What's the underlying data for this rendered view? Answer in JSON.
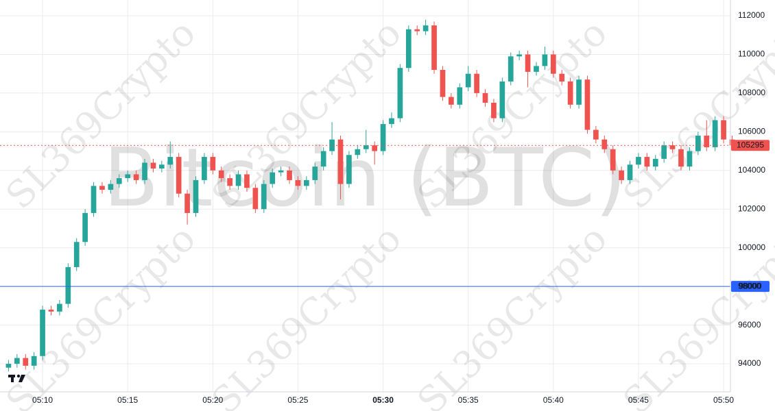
{
  "chart_data": {
    "type": "candlestick",
    "title": "Bitcoin (BTC)",
    "watermark": "SL369Crypto",
    "x": [
      8,
      8.5,
      9,
      9.5,
      10,
      10.5,
      11,
      11.5,
      12,
      12.5,
      13,
      13.5,
      14,
      14.5,
      15,
      15.5,
      16,
      16.5,
      17,
      17.5,
      18,
      18.5,
      19,
      19.5,
      20,
      20.5,
      21,
      21.5,
      22,
      22.5,
      23,
      23.5,
      24,
      24.5,
      25,
      25.5,
      26,
      26.5,
      27,
      27.5,
      28,
      28.5,
      29,
      29.5,
      30,
      30.5,
      31,
      31.5,
      32,
      32.5,
      33,
      33.5,
      34,
      34.5,
      35,
      35.5,
      36,
      36.5,
      37,
      37.5,
      38,
      38.5,
      39,
      39.5,
      40,
      40.5,
      41,
      41.5,
      42,
      42.5,
      43,
      43.5,
      44,
      44.5,
      45,
      45.5,
      46,
      46.5,
      47,
      47.5,
      48,
      48.5,
      49,
      49.5,
      50,
      50.5
    ],
    "open": [
      93800,
      94000,
      94300,
      93900,
      94400,
      96800,
      96700,
      97100,
      99000,
      100300,
      101800,
      103200,
      103000,
      103300,
      103600,
      103800,
      103500,
      104400,
      104100,
      104300,
      104700,
      102800,
      101800,
      103500,
      104700,
      104000,
      103600,
      103200,
      103800,
      103100,
      102000,
      103300,
      103900,
      104000,
      103500,
      103200,
      103500,
      104200,
      105000,
      105600,
      103300,
      104800,
      105100,
      105300,
      105000,
      106400,
      106700,
      109300,
      111300,
      111200,
      111500,
      109200,
      107800,
      107400,
      108300,
      109000,
      108000,
      107500,
      106700,
      108600,
      109900,
      110000,
      109100,
      109400,
      110000,
      109000,
      108600,
      107400,
      108700,
      106100,
      105600,
      105100,
      104000,
      103500,
      104300,
      104700,
      104200,
      104600,
      105300,
      105100,
      104200,
      105000,
      105800,
      105200,
      106600,
      105600
    ],
    "high": [
      94200,
      94500,
      94500,
      94600,
      97000,
      97000,
      97300,
      99200,
      100500,
      102000,
      103400,
      103400,
      103500,
      103800,
      104000,
      104000,
      104600,
      104600,
      104500,
      105500,
      104900,
      103000,
      103700,
      104900,
      104900,
      104200,
      103800,
      104000,
      104000,
      103300,
      103500,
      104100,
      104200,
      104200,
      103700,
      103700,
      104400,
      105200,
      106500,
      105800,
      105000,
      105300,
      106100,
      105500,
      106600,
      107000,
      109500,
      111500,
      111500,
      111800,
      111700,
      109400,
      108000,
      108500,
      109400,
      109200,
      108200,
      107700,
      108800,
      110100,
      110200,
      110200,
      109600,
      110400,
      110200,
      109200,
      108800,
      108900,
      108900,
      106300,
      105800,
      105300,
      104200,
      104500,
      104900,
      104900,
      104800,
      105500,
      105500,
      105300,
      105200,
      106000,
      106600,
      106800,
      106800,
      105800
    ],
    "low": [
      93600,
      93800,
      93700,
      93700,
      94200,
      96500,
      96500,
      96900,
      98800,
      100100,
      101600,
      102800,
      102800,
      103100,
      103400,
      103300,
      103300,
      103900,
      103900,
      104100,
      102600,
      101200,
      101600,
      103300,
      103800,
      103400,
      103000,
      103000,
      102900,
      101800,
      101800,
      103100,
      103700,
      103300,
      103000,
      103000,
      103300,
      104000,
      104800,
      102500,
      103100,
      104600,
      104900,
      104300,
      104800,
      106200,
      106500,
      109100,
      111000,
      111000,
      109000,
      107600,
      107200,
      107200,
      108100,
      107800,
      107300,
      106500,
      106500,
      108400,
      109700,
      108300,
      108900,
      109200,
      108800,
      108400,
      107200,
      107200,
      105900,
      105400,
      104900,
      103800,
      103300,
      103300,
      104100,
      104000,
      104000,
      104400,
      104900,
      104000,
      104000,
      104800,
      105000,
      105000,
      105400,
      105100
    ],
    "close": [
      94000,
      94300,
      93900,
      94400,
      96800,
      96700,
      97100,
      99000,
      100300,
      101800,
      103200,
      103000,
      103300,
      103600,
      103800,
      103500,
      104400,
      104100,
      104300,
      104700,
      102800,
      101800,
      103500,
      104700,
      104000,
      103600,
      103200,
      103800,
      103100,
      102000,
      103300,
      103900,
      104000,
      103500,
      103200,
      103500,
      104200,
      105000,
      105600,
      103300,
      104800,
      105100,
      105300,
      105000,
      106400,
      106700,
      109300,
      111300,
      111200,
      111500,
      109200,
      107800,
      107400,
      108300,
      109000,
      108000,
      107500,
      106700,
      108600,
      109900,
      110000,
      109100,
      109400,
      110000,
      109000,
      108600,
      107400,
      108700,
      106100,
      105600,
      105100,
      104000,
      103500,
      104300,
      104700,
      104200,
      104600,
      105300,
      105100,
      104200,
      105000,
      105800,
      105200,
      106600,
      105600,
      105295
    ],
    "up_color": "#26a69a",
    "down_color": "#ef5350",
    "xlim": [
      7.5,
      50.4
    ],
    "ylim": [
      92550,
      112815
    ],
    "xticks": [
      {
        "value": 10,
        "label": "05:10"
      },
      {
        "value": 15,
        "label": "05:15"
      },
      {
        "value": 20,
        "label": "05:20"
      },
      {
        "value": 25,
        "label": "05:25"
      },
      {
        "value": 30,
        "label": "05:30"
      },
      {
        "value": 35,
        "label": "05:35"
      },
      {
        "value": 40,
        "label": "05:40"
      },
      {
        "value": 45,
        "label": "05:45"
      },
      {
        "value": 50,
        "label": "05:50"
      }
    ],
    "yticks": [
      94000,
      96000,
      98000,
      100000,
      102000,
      104000,
      106000,
      108000,
      110000,
      112000
    ],
    "grid": true,
    "price_lines": [
      {
        "value": 105295,
        "color": "#ef5350",
        "style": "dashed"
      },
      {
        "value": 98000,
        "color": "#2962ff",
        "style": "solid"
      }
    ]
  }
}
